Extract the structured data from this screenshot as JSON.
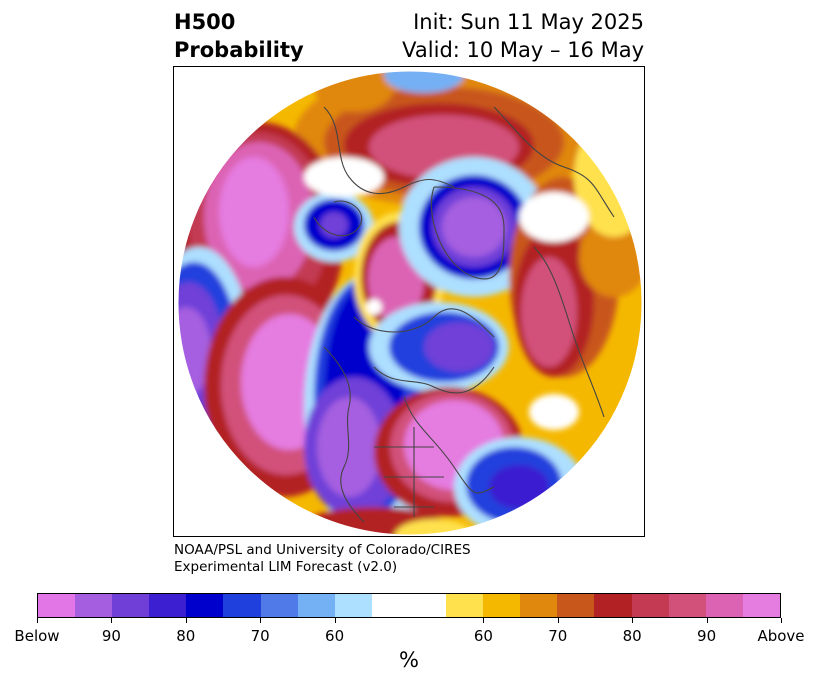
{
  "header": {
    "title_line1": "H500",
    "title_line2": "Probability",
    "init": "Init: Sun 11 May 2025",
    "valid": "Valid: 10 May – 16 May"
  },
  "credit": {
    "line1": "NOAA/PSL and University of Colorado/CIRES",
    "line2": "Experimental LIM Forecast (v2.0)"
  },
  "colorbar": {
    "colors": [
      "#e276e6",
      "#a55ee0",
      "#6f3fd8",
      "#3b1fd0",
      "#0000cc",
      "#2040dd",
      "#4f7ae8",
      "#74b0f4",
      "#addfff",
      "#ffffff",
      "#ffffff",
      "#ffe14d",
      "#f5b800",
      "#e0870e",
      "#c8571b",
      "#b22224",
      "#c33a52",
      "#d2517a",
      "#dc63b4",
      "#e57ce0"
    ],
    "tick_labels": [
      "Below",
      "90",
      "80",
      "70",
      "60",
      "60",
      "70",
      "80",
      "90",
      "Above"
    ],
    "unit_label": "%"
  }
}
